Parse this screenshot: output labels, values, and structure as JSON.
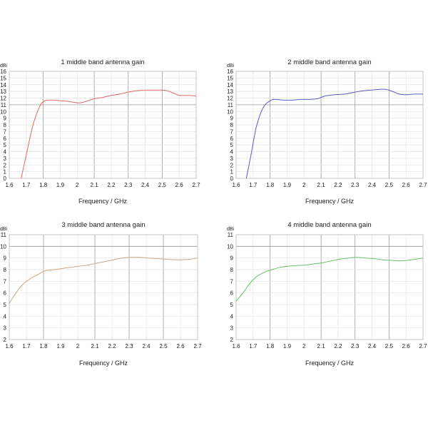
{
  "chart_data": [
    {
      "type": "line",
      "title": "1 middle band antenna gain",
      "xlabel": "Frequency / GHz",
      "ylabel": "dBi",
      "xlim": [
        1.6,
        2.7
      ],
      "ylim": [
        0,
        16
      ],
      "xticks": [
        1.6,
        1.7,
        1.8,
        1.9,
        2,
        2.1,
        2.2,
        2.3,
        2.4,
        2.5,
        2.6,
        2.7
      ],
      "yticks": [
        0,
        1,
        2,
        3,
        4,
        5,
        6,
        7,
        8,
        9,
        10,
        11,
        12,
        13,
        14,
        15,
        16
      ],
      "major_x": [
        1.8,
        2.1,
        2.3,
        2.5
      ],
      "major_y": [
        11
      ],
      "grid": true,
      "color": "#e06666",
      "series": [
        {
          "x": [
            1.67,
            1.7,
            1.74,
            1.78,
            1.81,
            1.85,
            1.9,
            1.95,
            2.0,
            2.02,
            2.05,
            2.1,
            2.15,
            2.2,
            2.25,
            2.3,
            2.35,
            2.4,
            2.45,
            2.5,
            2.53,
            2.57,
            2.6,
            2.65,
            2.7
          ],
          "y": [
            0,
            3.5,
            8.0,
            10.8,
            11.6,
            11.7,
            11.6,
            11.5,
            11.3,
            11.3,
            11.5,
            11.9,
            12.1,
            12.4,
            12.6,
            12.9,
            13.1,
            13.2,
            13.2,
            13.2,
            13.1,
            12.7,
            12.4,
            12.4,
            12.3
          ]
        }
      ]
    },
    {
      "type": "line",
      "title": "2 middle band antenna gain",
      "xlabel": "Frequency / GHz",
      "ylabel": "dBi",
      "xlim": [
        1.6,
        2.7
      ],
      "ylim": [
        0,
        16
      ],
      "xticks": [
        1.6,
        1.7,
        1.8,
        1.9,
        2,
        2.1,
        2.2,
        2.3,
        2.4,
        2.5,
        2.6,
        2.7
      ],
      "yticks": [
        0,
        1,
        2,
        3,
        4,
        5,
        6,
        7,
        8,
        9,
        10,
        11,
        12,
        13,
        14,
        15,
        16
      ],
      "major_x": [
        1.8,
        2.1,
        2.3,
        2.5
      ],
      "major_y": [
        11
      ],
      "grid": true,
      "color": "#5b5bc0",
      "series": [
        {
          "x": [
            1.66,
            1.69,
            1.72,
            1.76,
            1.8,
            1.83,
            1.88,
            1.93,
            1.98,
            2.03,
            2.08,
            2.12,
            2.18,
            2.24,
            2.3,
            2.35,
            2.4,
            2.45,
            2.48,
            2.52,
            2.56,
            2.6,
            2.65,
            2.7
          ],
          "y": [
            0,
            3.8,
            7.8,
            10.6,
            11.6,
            11.8,
            11.7,
            11.7,
            11.8,
            11.8,
            11.9,
            12.3,
            12.5,
            12.6,
            12.9,
            13.1,
            13.2,
            13.3,
            13.3,
            13.0,
            12.6,
            12.5,
            12.6,
            12.6
          ]
        }
      ]
    },
    {
      "type": "line",
      "title": "3 middle band antenna gain",
      "xlabel": "Frequency / GHz",
      "ylabel": "dBi",
      "xlim": [
        1.6,
        2.7
      ],
      "ylim": [
        2,
        11
      ],
      "xticks": [
        1.6,
        1.7,
        1.8,
        1.9,
        2,
        2.1,
        2.2,
        2.3,
        2.4,
        2.5,
        2.6,
        2.7
      ],
      "yticks": [
        2,
        3,
        4,
        5,
        6,
        7,
        8,
        9,
        10,
        11
      ],
      "major_x": [
        1.8,
        2.1,
        2.3,
        2.5
      ],
      "major_y": [
        10
      ],
      "grid": true,
      "color": "#c8a68a",
      "series": [
        {
          "x": [
            1.6,
            1.63,
            1.67,
            1.72,
            1.77,
            1.81,
            1.86,
            1.91,
            1.96,
            2.01,
            2.06,
            2.11,
            2.16,
            2.21,
            2.26,
            2.31,
            2.36,
            2.41,
            2.46,
            2.51,
            2.56,
            2.61,
            2.66,
            2.7
          ],
          "y": [
            5.1,
            5.8,
            6.6,
            7.2,
            7.6,
            7.9,
            8.0,
            8.1,
            8.2,
            8.3,
            8.4,
            8.55,
            8.7,
            8.85,
            9.0,
            9.05,
            9.05,
            9.0,
            8.95,
            8.9,
            8.85,
            8.85,
            8.9,
            9.0
          ]
        }
      ]
    },
    {
      "type": "line",
      "title": "4 middle band antenna gain",
      "xlabel": "Frequency / GHz",
      "ylabel": "dBi",
      "xlim": [
        1.6,
        2.7
      ],
      "ylim": [
        2,
        11
      ],
      "xticks": [
        1.6,
        1.7,
        1.8,
        1.9,
        2,
        2.1,
        2.2,
        2.3,
        2.4,
        2.5,
        2.6,
        2.7
      ],
      "yticks": [
        2,
        3,
        4,
        5,
        6,
        7,
        8,
        9,
        10,
        11
      ],
      "major_x": [
        1.8,
        2.1,
        2.3,
        2.5
      ],
      "major_y": [
        10
      ],
      "grid": true,
      "color": "#66c266",
      "series": [
        {
          "x": [
            1.6,
            1.64,
            1.68,
            1.72,
            1.77,
            1.81,
            1.86,
            1.91,
            1.96,
            2.01,
            2.06,
            2.11,
            2.16,
            2.21,
            2.26,
            2.31,
            2.36,
            2.41,
            2.46,
            2.51,
            2.56,
            2.61,
            2.66,
            2.7
          ],
          "y": [
            5.3,
            6.0,
            6.8,
            7.4,
            7.8,
            8.0,
            8.2,
            8.3,
            8.35,
            8.4,
            8.5,
            8.6,
            8.75,
            8.9,
            9.0,
            9.05,
            9.0,
            8.95,
            8.85,
            8.8,
            8.75,
            8.8,
            8.9,
            9.0
          ]
        }
      ]
    }
  ]
}
